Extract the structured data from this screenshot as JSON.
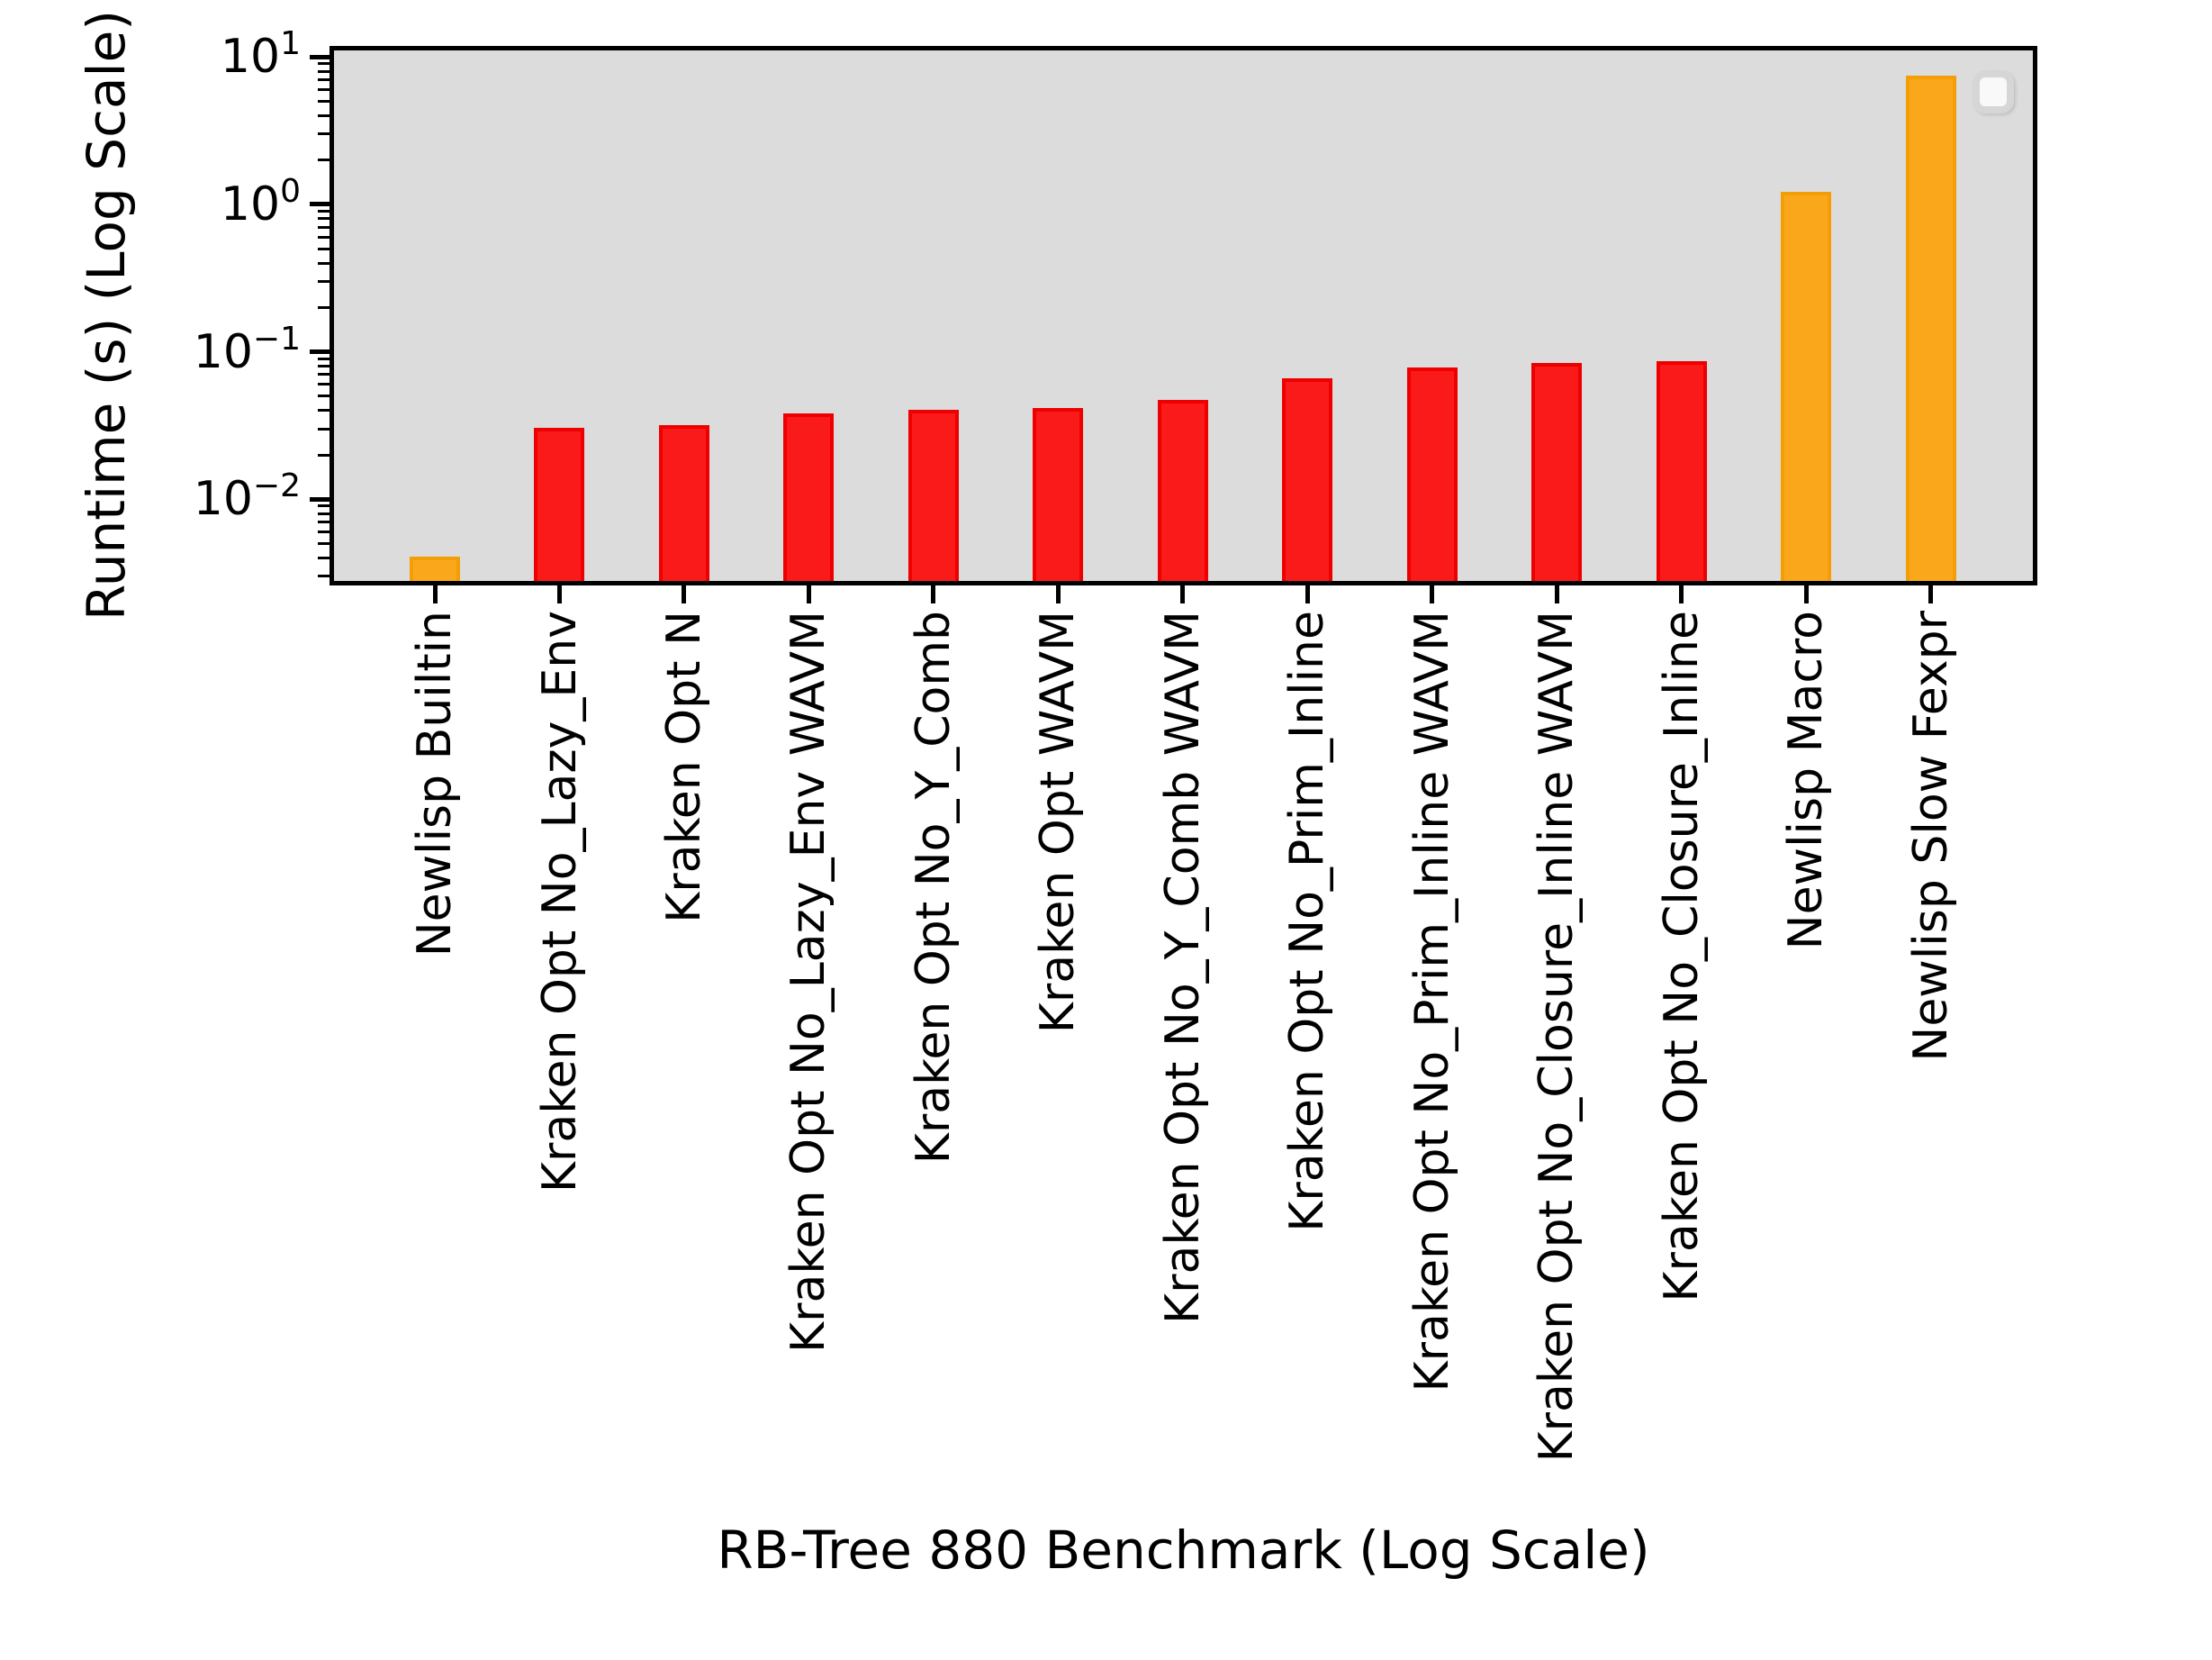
{
  "chart_data": {
    "type": "bar",
    "title": "",
    "xlabel": "RB-Tree 880 Benchmark (Log Scale)",
    "ylabel": "Runtime (s) (Log Scale)",
    "yscale": "log",
    "ylim": [
      0.00279,
      11.05
    ],
    "ytick_exponents": [
      1,
      0,
      -1,
      -2
    ],
    "grid": false,
    "legend": {
      "present": true,
      "entries": []
    },
    "categories": [
      "Newlisp Builtin",
      "Kraken Opt No_Lazy_Env",
      "Kraken Opt N",
      "Kraken Opt No_Lazy_Env WAVM",
      "Kraken Opt No_Y_Comb",
      "Kraken Opt WAVM",
      "Kraken Opt No_Y_Comb WAVM",
      "Kraken Opt No_Prim_Inline",
      "Kraken Opt No_Prim_Inline WAVM",
      "Kraken Opt No_Closure_Inline WAVM",
      "Kraken Opt No_Closure_Inline",
      "Newlisp Macro",
      "Newlisp Slow Fexpr"
    ],
    "values": [
      0.0041,
      0.0305,
      0.032,
      0.038,
      0.0405,
      0.0415,
      0.0475,
      0.0665,
      0.078,
      0.0835,
      0.0865,
      1.21,
      7.5
    ],
    "bar_colors": [
      "orange",
      "red",
      "red",
      "red",
      "red",
      "red",
      "red",
      "red",
      "red",
      "red",
      "red",
      "orange",
      "orange"
    ],
    "colors": {
      "red_fill": "#fb1a1a",
      "red_edge": "#ee0000",
      "orange_fill": "#faa71c",
      "orange_edge": "#f49e06",
      "plot_background": "#dcdcdc",
      "figure_background": "#ffffff",
      "axis": "#000000"
    }
  }
}
